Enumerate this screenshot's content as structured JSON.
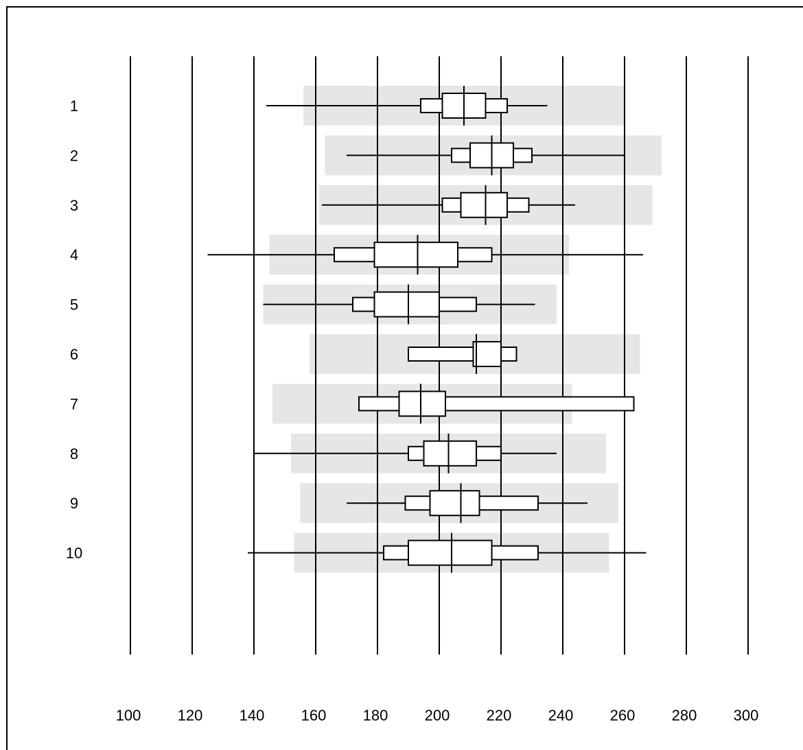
{
  "chart_data": {
    "type": "box",
    "orientation": "horizontal",
    "xlim": [
      100,
      300
    ],
    "x_ticks": [
      100,
      120,
      140,
      160,
      180,
      200,
      220,
      240,
      260,
      280,
      300
    ],
    "categories": [
      "1",
      "2",
      "3",
      "4",
      "5",
      "6",
      "7",
      "8",
      "9",
      "10"
    ],
    "grid": true,
    "colors": {
      "band": "#e6e6e6",
      "box": "#ffffff",
      "line": "#000000"
    },
    "rows": [
      {
        "label": "1",
        "band": [
          156,
          260
        ],
        "whisker": [
          144,
          235
        ],
        "outer": [
          194,
          222
        ],
        "inner": [
          201,
          215
        ],
        "median": 208
      },
      {
        "label": "2",
        "band": [
          163,
          272
        ],
        "whisker": [
          170,
          260
        ],
        "outer": [
          204,
          230
        ],
        "inner": [
          210,
          224
        ],
        "median": 217
      },
      {
        "label": "3",
        "band": [
          161,
          269
        ],
        "whisker": [
          162,
          244
        ],
        "outer": [
          201,
          229
        ],
        "inner": [
          207,
          222
        ],
        "median": 215
      },
      {
        "label": "4",
        "band": [
          145,
          242
        ],
        "whisker": [
          125,
          266
        ],
        "outer": [
          166,
          217
        ],
        "inner": [
          179,
          206
        ],
        "median": 193
      },
      {
        "label": "5",
        "band": [
          143,
          238
        ],
        "whisker": [
          143,
          231
        ],
        "outer": [
          172,
          212
        ],
        "inner": [
          179,
          200
        ],
        "median": 190
      },
      {
        "label": "6",
        "band": [
          158,
          265
        ],
        "whisker": null,
        "outer": [
          190,
          225
        ],
        "inner": [
          211,
          220
        ],
        "median": 212
      },
      {
        "label": "7",
        "band": [
          146,
          243
        ],
        "whisker": null,
        "outer": [
          174,
          263
        ],
        "inner": [
          187,
          202
        ],
        "median": 194
      },
      {
        "label": "8",
        "band": [
          152,
          254
        ],
        "whisker": [
          140,
          238
        ],
        "outer": [
          190,
          220
        ],
        "inner": [
          195,
          212
        ],
        "median": 203
      },
      {
        "label": "9",
        "band": [
          155,
          258
        ],
        "whisker": [
          170,
          248
        ],
        "outer": [
          189,
          232
        ],
        "inner": [
          197,
          213
        ],
        "median": 207
      },
      {
        "label": "10",
        "band": [
          153,
          255
        ],
        "whisker": [
          138,
          267
        ],
        "outer": [
          182,
          232
        ],
        "inner": [
          190,
          217
        ],
        "median": 204
      }
    ]
  }
}
